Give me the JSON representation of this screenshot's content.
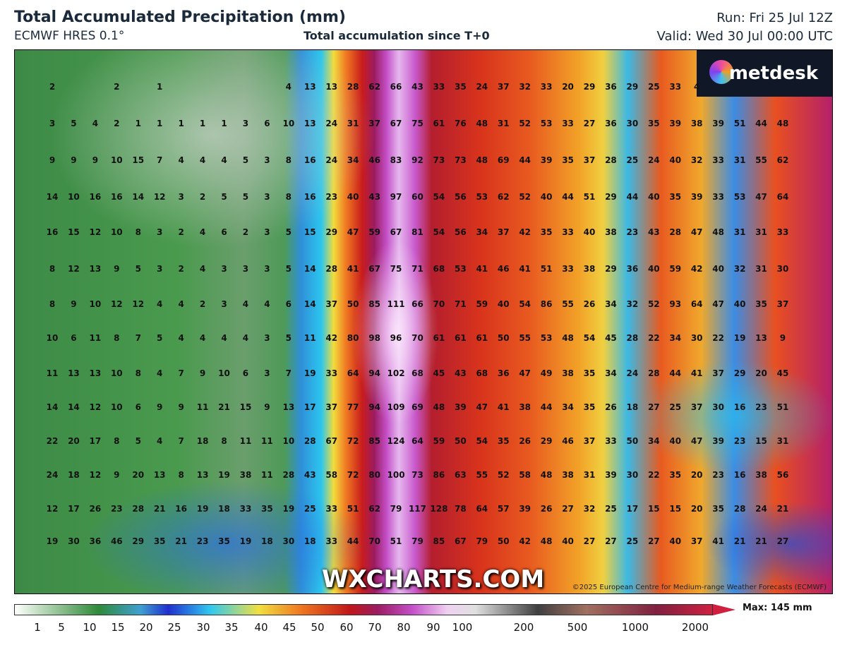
{
  "header": {
    "title": "Total Accumulated Precipitation (mm)",
    "model": "ECMWF HRES 0.1°",
    "subtitle": "Total accumulation since T+0",
    "run": "Run: Fri 25 Jul 12Z",
    "valid": "Valid: Wed 30 Jul 00:00 UTC"
  },
  "map": {
    "logo": "metdesk",
    "watermark": "WXCHARTS.COM",
    "copyright": "©2025 European Centre for Medium-range Weather Forecasts (ECMWF)",
    "grid": [
      [
        2,
        null,
        null,
        2,
        null,
        1,
        null,
        null,
        null,
        null,
        null,
        4,
        13,
        13,
        28,
        62,
        66,
        43,
        33,
        35,
        24,
        37,
        32,
        33,
        20,
        29,
        36,
        29,
        25,
        33,
        4,
        null,
        null,
        null,
        null
      ],
      [
        3,
        5,
        4,
        2,
        1,
        1,
        1,
        1,
        1,
        3,
        6,
        10,
        13,
        24,
        31,
        37,
        67,
        75,
        61,
        76,
        48,
        31,
        52,
        53,
        33,
        27,
        36,
        30,
        35,
        39,
        38,
        39,
        51,
        44,
        48
      ],
      [
        9,
        9,
        9,
        10,
        15,
        7,
        4,
        4,
        4,
        5,
        3,
        8,
        16,
        24,
        34,
        46,
        83,
        92,
        73,
        73,
        48,
        69,
        44,
        39,
        35,
        37,
        28,
        25,
        24,
        40,
        32,
        33,
        31,
        55,
        62
      ],
      [
        14,
        10,
        16,
        16,
        14,
        12,
        3,
        2,
        5,
        5,
        3,
        8,
        16,
        23,
        40,
        43,
        97,
        60,
        54,
        56,
        53,
        62,
        52,
        40,
        44,
        51,
        29,
        44,
        40,
        35,
        39,
        33,
        53,
        47,
        64
      ],
      [
        16,
        15,
        12,
        10,
        8,
        3,
        2,
        4,
        6,
        2,
        3,
        5,
        15,
        29,
        47,
        59,
        67,
        81,
        54,
        56,
        34,
        37,
        42,
        35,
        33,
        40,
        38,
        23,
        43,
        28,
        47,
        48,
        31,
        31,
        33
      ],
      [
        8,
        12,
        13,
        9,
        5,
        3,
        2,
        4,
        3,
        3,
        3,
        5,
        14,
        28,
        41,
        67,
        75,
        71,
        68,
        53,
        41,
        46,
        41,
        51,
        33,
        38,
        29,
        36,
        40,
        59,
        42,
        40,
        32,
        31,
        30
      ],
      [
        8,
        9,
        10,
        12,
        12,
        4,
        4,
        2,
        3,
        4,
        4,
        6,
        14,
        37,
        50,
        85,
        111,
        66,
        70,
        71,
        59,
        40,
        54,
        86,
        55,
        26,
        34,
        32,
        52,
        93,
        64,
        47,
        40,
        35,
        37
      ],
      [
        10,
        6,
        11,
        8,
        7,
        5,
        4,
        4,
        4,
        4,
        3,
        5,
        11,
        42,
        80,
        98,
        96,
        70,
        61,
        61,
        61,
        50,
        55,
        53,
        48,
        54,
        45,
        28,
        22,
        34,
        30,
        22,
        19,
        13,
        9
      ],
      [
        11,
        13,
        13,
        10,
        8,
        4,
        7,
        9,
        10,
        6,
        3,
        7,
        19,
        33,
        64,
        94,
        102,
        68,
        45,
        43,
        68,
        36,
        47,
        49,
        38,
        35,
        34,
        24,
        28,
        44,
        41,
        37,
        29,
        20,
        45
      ],
      [
        14,
        14,
        12,
        10,
        6,
        9,
        9,
        11,
        21,
        15,
        9,
        13,
        17,
        37,
        77,
        94,
        109,
        69,
        48,
        39,
        47,
        41,
        38,
        44,
        34,
        35,
        26,
        18,
        27,
        25,
        37,
        30,
        16,
        23,
        51
      ],
      [
        22,
        20,
        17,
        8,
        5,
        4,
        7,
        18,
        8,
        11,
        11,
        10,
        28,
        67,
        72,
        85,
        124,
        64,
        59,
        50,
        54,
        35,
        26,
        29,
        46,
        37,
        33,
        50,
        34,
        40,
        47,
        39,
        23,
        15,
        31
      ],
      [
        24,
        18,
        12,
        9,
        20,
        13,
        8,
        13,
        19,
        38,
        11,
        28,
        43,
        58,
        72,
        80,
        100,
        73,
        86,
        63,
        55,
        52,
        58,
        48,
        38,
        31,
        39,
        30,
        22,
        35,
        20,
        23,
        16,
        38,
        56
      ],
      [
        12,
        17,
        26,
        23,
        28,
        21,
        16,
        19,
        18,
        33,
        35,
        19,
        25,
        33,
        51,
        62,
        79,
        117,
        128,
        78,
        64,
        57,
        39,
        26,
        27,
        32,
        25,
        17,
        15,
        15,
        20,
        35,
        28,
        24,
        21
      ],
      [
        19,
        30,
        36,
        46,
        29,
        35,
        21,
        23,
        35,
        19,
        18,
        30,
        18,
        33,
        44,
        70,
        51,
        79,
        85,
        67,
        79,
        50,
        42,
        48,
        40,
        27,
        27,
        25,
        27,
        40,
        37,
        41,
        21,
        21,
        27
      ]
    ]
  },
  "legend": {
    "ticks": [
      1,
      5,
      10,
      15,
      20,
      25,
      30,
      35,
      40,
      45,
      50,
      60,
      70,
      80,
      90,
      100,
      200,
      500,
      1000,
      2000
    ],
    "max_label": "Max: 145 mm"
  }
}
